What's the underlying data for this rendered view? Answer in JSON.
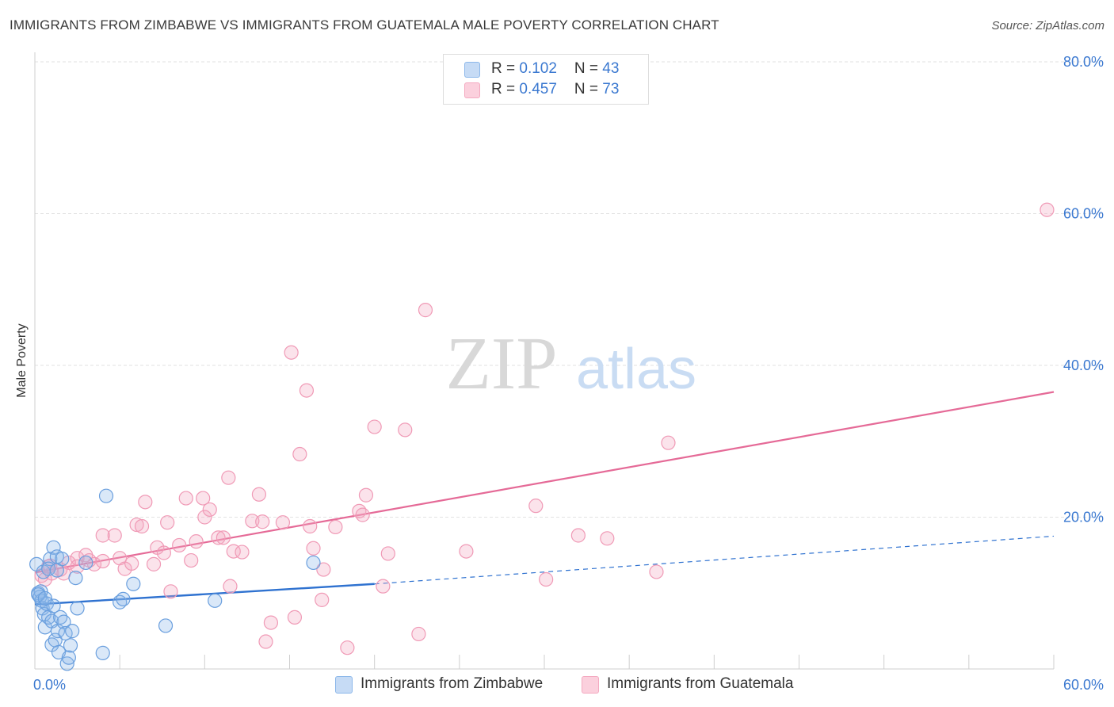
{
  "title": "IMMIGRANTS FROM ZIMBABWE VS IMMIGRANTS FROM GUATEMALA MALE POVERTY CORRELATION CHART",
  "source": "Source: ZipAtlas.com",
  "watermark": {
    "zip": "ZIP",
    "atlas": "atlas"
  },
  "legend": {
    "rows": [
      {
        "r_label": "R = ",
        "r_value": "0.102",
        "n_label": "N = ",
        "n_value": "43"
      },
      {
        "r_label": "R = ",
        "r_value": "0.457",
        "n_label": "N = ",
        "n_value": "73"
      }
    ]
  },
  "bottom_legend": [
    "Immigrants from Zimbabwe",
    "Immigrants from Guatemala"
  ],
  "chart_data": {
    "type": "scatter",
    "title": "IMMIGRANTS FROM ZIMBABWE VS IMMIGRANTS FROM GUATEMALA MALE POVERTY CORRELATION CHART",
    "xlabel": "",
    "ylabel": "Male Poverty",
    "xlim": [
      0,
      60
    ],
    "ylim": [
      0,
      80
    ],
    "x_tick_labels": [
      "0.0%",
      "60.0%"
    ],
    "y_tick_values": [
      20,
      40,
      60,
      80
    ],
    "y_tick_labels": [
      "20.0%",
      "40.0%",
      "60.0%",
      "80.0%"
    ],
    "grid": true,
    "colors": {
      "zimbabwe": "#8db8ea",
      "zimbabwe_line": "#2f72d0",
      "guatemala": "#f4a9c0",
      "guatemala_line": "#e56a97",
      "tick_text": "#3a78d0"
    },
    "series": [
      {
        "name": "Immigrants from Zimbabwe",
        "r": 0.102,
        "n": 43,
        "trend": {
          "x0": 0,
          "y0": 8.5,
          "x1": 20,
          "y1": 11.2,
          "dash_to_x": 60,
          "dash_to_y": 17.5
        },
        "points": [
          [
            0.1,
            13.8
          ],
          [
            0.2,
            10.0
          ],
          [
            0.3,
            9.5
          ],
          [
            0.35,
            10.2
          ],
          [
            0.4,
            9.0
          ],
          [
            0.45,
            8.0
          ],
          [
            0.5,
            12.8
          ],
          [
            0.55,
            7.2
          ],
          [
            0.6,
            5.5
          ],
          [
            0.7,
            8.6
          ],
          [
            0.8,
            6.8
          ],
          [
            0.9,
            14.5
          ],
          [
            1.0,
            6.3
          ],
          [
            1.0,
            3.2
          ],
          [
            1.1,
            16.0
          ],
          [
            1.1,
            8.3
          ],
          [
            1.2,
            3.8
          ],
          [
            1.3,
            14.8
          ],
          [
            1.35,
            5.0
          ],
          [
            1.4,
            2.2
          ],
          [
            1.5,
            6.8
          ],
          [
            1.6,
            14.5
          ],
          [
            1.7,
            6.2
          ],
          [
            1.8,
            4.7
          ],
          [
            1.9,
            0.7
          ],
          [
            2.0,
            1.5
          ],
          [
            2.1,
            3.1
          ],
          [
            2.2,
            5.0
          ],
          [
            2.4,
            12.0
          ],
          [
            2.5,
            8.0
          ],
          [
            3.0,
            14.0
          ],
          [
            4.0,
            2.1
          ],
          [
            4.2,
            22.8
          ],
          [
            5.0,
            8.8
          ],
          [
            5.2,
            9.2
          ],
          [
            5.8,
            11.2
          ],
          [
            7.7,
            5.7
          ],
          [
            10.6,
            9.0
          ],
          [
            16.4,
            14.0
          ],
          [
            0.8,
            13.2
          ],
          [
            0.2,
            9.8
          ],
          [
            0.6,
            9.3
          ],
          [
            1.3,
            13.0
          ]
        ]
      },
      {
        "name": "Immigrants from Guatemala",
        "r": 0.457,
        "n": 73,
        "trend": {
          "x0": 0,
          "y0": 12.7,
          "x1": 60,
          "y1": 36.5
        },
        "points": [
          [
            0.4,
            12.3
          ],
          [
            0.6,
            11.8
          ],
          [
            0.8,
            13.5
          ],
          [
            1.0,
            12.6
          ],
          [
            1.5,
            13.1
          ],
          [
            2.0,
            14.0
          ],
          [
            2.5,
            14.6
          ],
          [
            3.0,
            15.0
          ],
          [
            3.5,
            13.8
          ],
          [
            4.0,
            14.2
          ],
          [
            4.0,
            17.6
          ],
          [
            4.7,
            17.6
          ],
          [
            5.0,
            14.6
          ],
          [
            5.3,
            13.2
          ],
          [
            5.7,
            13.9
          ],
          [
            6.0,
            19.0
          ],
          [
            6.3,
            18.8
          ],
          [
            6.5,
            22.0
          ],
          [
            7.0,
            13.8
          ],
          [
            7.2,
            16.0
          ],
          [
            7.6,
            15.3
          ],
          [
            7.8,
            19.3
          ],
          [
            8.0,
            10.2
          ],
          [
            8.5,
            16.3
          ],
          [
            8.9,
            22.5
          ],
          [
            9.2,
            14.3
          ],
          [
            9.5,
            16.8
          ],
          [
            9.9,
            22.5
          ],
          [
            10.0,
            20.0
          ],
          [
            10.3,
            21.0
          ],
          [
            10.8,
            17.3
          ],
          [
            11.1,
            17.3
          ],
          [
            11.4,
            25.2
          ],
          [
            11.5,
            10.9
          ],
          [
            11.7,
            15.5
          ],
          [
            12.2,
            15.4
          ],
          [
            12.8,
            19.5
          ],
          [
            13.2,
            23.0
          ],
          [
            13.4,
            19.4
          ],
          [
            13.6,
            3.6
          ],
          [
            13.9,
            6.1
          ],
          [
            14.6,
            19.3
          ],
          [
            15.1,
            41.7
          ],
          [
            15.3,
            6.8
          ],
          [
            15.6,
            28.3
          ],
          [
            16.0,
            36.7
          ],
          [
            16.2,
            18.8
          ],
          [
            16.4,
            15.9
          ],
          [
            16.9,
            9.1
          ],
          [
            17.0,
            13.1
          ],
          [
            17.7,
            18.7
          ],
          [
            18.4,
            2.8
          ],
          [
            19.1,
            20.8
          ],
          [
            19.3,
            20.3
          ],
          [
            19.5,
            22.9
          ],
          [
            20.0,
            31.9
          ],
          [
            20.5,
            10.9
          ],
          [
            20.8,
            15.2
          ],
          [
            21.8,
            31.5
          ],
          [
            22.6,
            4.6
          ],
          [
            23.0,
            47.3
          ],
          [
            25.4,
            15.5
          ],
          [
            29.5,
            21.5
          ],
          [
            30.1,
            11.8
          ],
          [
            32.0,
            17.6
          ],
          [
            33.7,
            17.2
          ],
          [
            36.6,
            12.8
          ],
          [
            37.3,
            29.8
          ],
          [
            59.6,
            60.5
          ],
          [
            2.5,
            13.5
          ],
          [
            3.2,
            14.3
          ],
          [
            0.9,
            13.6
          ],
          [
            1.7,
            12.6
          ]
        ]
      }
    ]
  }
}
